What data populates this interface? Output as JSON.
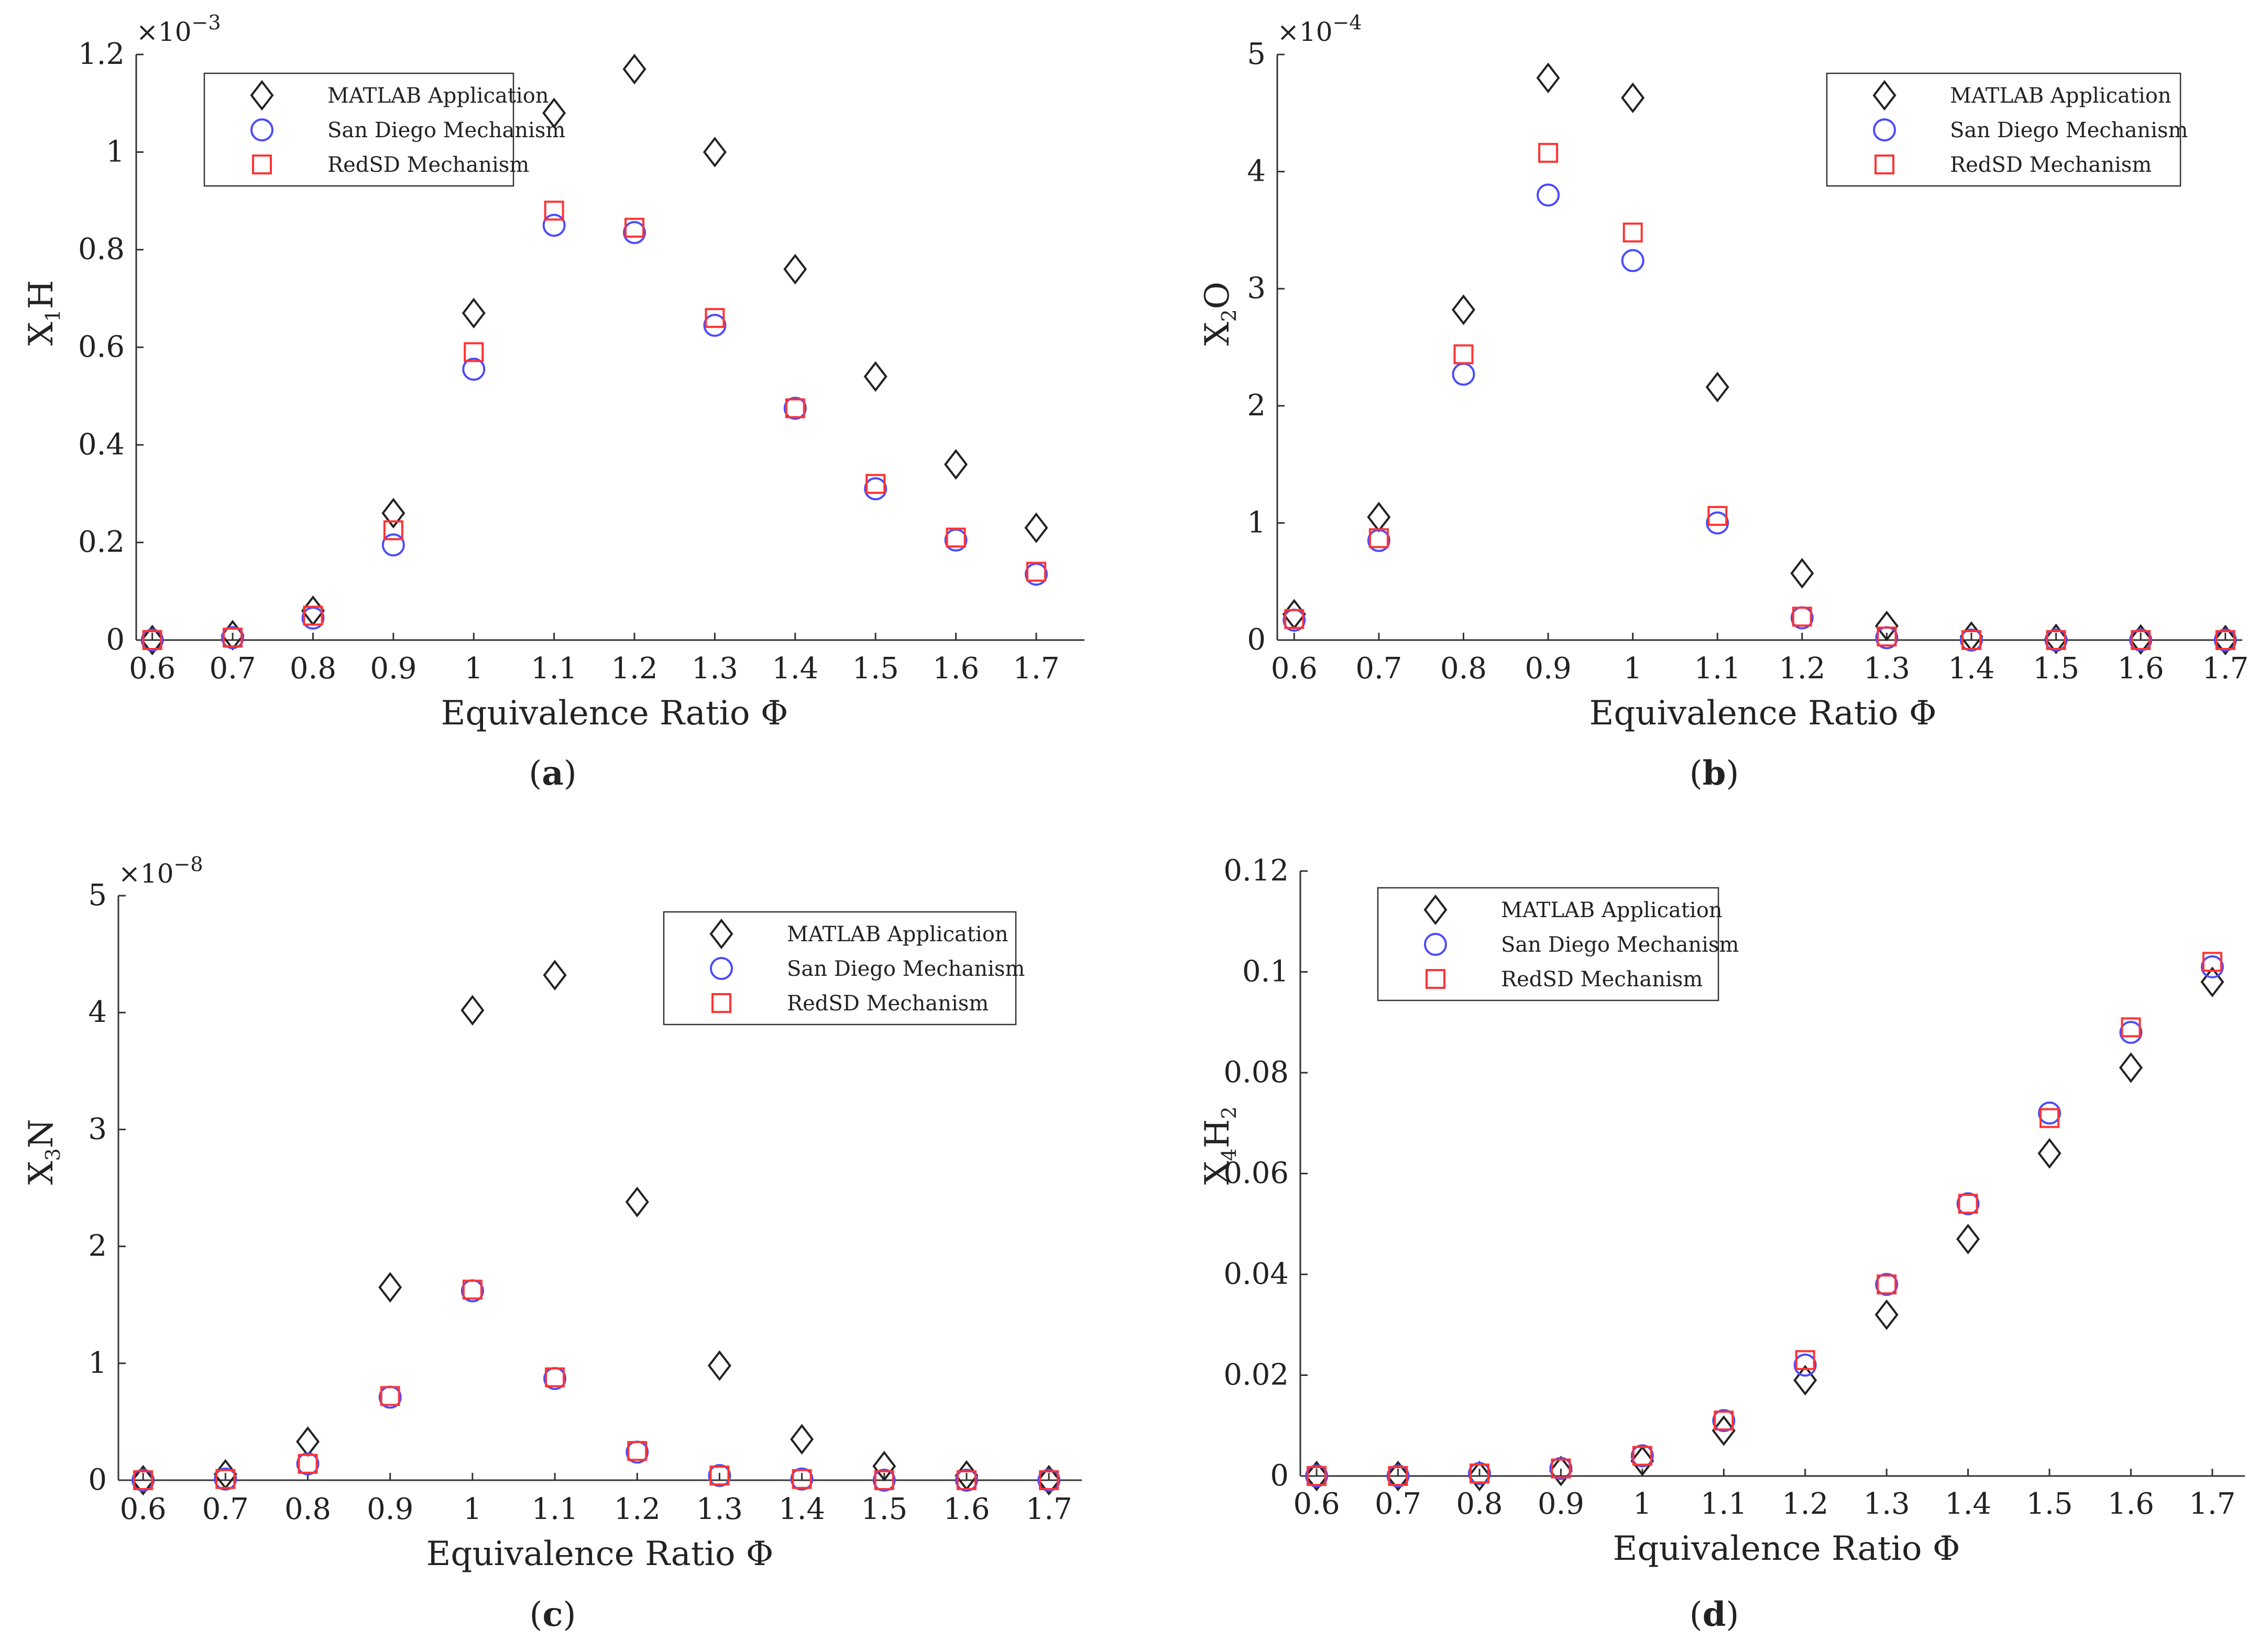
{
  "figure": {
    "series_names": [
      "MATLAB Application",
      "San Diego Mechanism",
      "RedSD Mechanism"
    ],
    "series_colors": {
      "matlab": "#222222",
      "sandiego": "#4a4aff",
      "redsd": "#ff3333"
    }
  },
  "chart_data": [
    {
      "type": "scatter",
      "panel": "a",
      "caption": "a",
      "xlabel": "Equivalence Ratio Φ",
      "ylabel_main": "X",
      "ylabel_sub": "1",
      "ylabel_tail": "H",
      "yexp_base": "×10",
      "yexp_power": "−3",
      "x": [
        0.6,
        0.7,
        0.8,
        0.9,
        1.0,
        1.1,
        1.2,
        1.3,
        1.4,
        1.5,
        1.6,
        1.7
      ],
      "xticks": [
        "0.6",
        "0.7",
        "0.8",
        "0.9",
        "1",
        "1.1",
        "1.2",
        "1.3",
        "1.4",
        "1.5",
        "1.6",
        "1.7"
      ],
      "yticks": [
        "0",
        "0.2",
        "0.4",
        "0.6",
        "0.8",
        "1",
        "1.2"
      ],
      "ytick_values": [
        0,
        0.2,
        0.4,
        0.6,
        0.8,
        1.0,
        1.2
      ],
      "xlim": [
        0.58,
        1.76
      ],
      "ylim": [
        0,
        1.2
      ],
      "legend_position": "top-left",
      "series": [
        {
          "name": "MATLAB Application",
          "marker": "diamond",
          "values": [
            0.0,
            0.01,
            0.06,
            0.26,
            0.67,
            1.08,
            1.17,
            1.0,
            0.76,
            0.54,
            0.36,
            0.23
          ]
        },
        {
          "name": "San Diego Mechanism",
          "marker": "circle",
          "values": [
            0.0,
            0.005,
            0.045,
            0.195,
            0.555,
            0.85,
            0.835,
            0.645,
            0.475,
            0.31,
            0.205,
            0.135
          ]
        },
        {
          "name": "RedSD Mechanism",
          "marker": "square",
          "values": [
            0.0,
            0.005,
            0.05,
            0.225,
            0.59,
            0.88,
            0.845,
            0.66,
            0.475,
            0.32,
            0.21,
            0.14
          ]
        }
      ]
    },
    {
      "type": "scatter",
      "panel": "b",
      "caption": "b",
      "xlabel": "Equivalence Ratio Φ",
      "ylabel_main": "X",
      "ylabel_sub": "2",
      "ylabel_tail": "O",
      "yexp_base": "×10",
      "yexp_power": "−4",
      "x": [
        0.6,
        0.7,
        0.8,
        0.9,
        1.0,
        1.1,
        1.2,
        1.3,
        1.4,
        1.5,
        1.6,
        1.7
      ],
      "xticks": [
        "0.6",
        "0.7",
        "0.8",
        "0.9",
        "1",
        "1.1",
        "1.2",
        "1.3",
        "1.4",
        "1.5",
        "1.6",
        "1.7"
      ],
      "yticks": [
        "0",
        "1",
        "2",
        "3",
        "4",
        "5"
      ],
      "ytick_values": [
        0,
        1,
        2,
        3,
        4,
        5
      ],
      "xlim": [
        0.58,
        1.72
      ],
      "ylim": [
        0,
        5
      ],
      "legend_position": "top-right",
      "series": [
        {
          "name": "MATLAB Application",
          "marker": "diamond",
          "values": [
            0.22,
            1.05,
            2.82,
            4.8,
            4.63,
            2.16,
            0.57,
            0.12,
            0.03,
            0.01,
            0.005,
            0.0
          ]
        },
        {
          "name": "San Diego Mechanism",
          "marker": "circle",
          "values": [
            0.17,
            0.85,
            2.27,
            3.8,
            3.24,
            1.0,
            0.19,
            0.02,
            0.0,
            0.0,
            0.0,
            0.0
          ]
        },
        {
          "name": "RedSD Mechanism",
          "marker": "square",
          "values": [
            0.18,
            0.87,
            2.44,
            4.16,
            3.48,
            1.06,
            0.2,
            0.03,
            0.0,
            0.0,
            0.0,
            0.0
          ]
        }
      ]
    },
    {
      "type": "scatter",
      "panel": "c",
      "caption": "c",
      "xlabel": "Equivalence Ratio Φ",
      "ylabel_main": "X",
      "ylabel_sub": "3",
      "ylabel_tail": "N",
      "yexp_base": "×10",
      "yexp_power": "−8",
      "x": [
        0.6,
        0.7,
        0.8,
        0.9,
        1.0,
        1.1,
        1.2,
        1.3,
        1.4,
        1.5,
        1.6,
        1.7
      ],
      "xticks": [
        "0.6",
        "0.7",
        "0.8",
        "0.9",
        "1",
        "1.1",
        "1.2",
        "1.3",
        "1.4",
        "1.5",
        "1.6",
        "1.7"
      ],
      "yticks": [
        "0",
        "1",
        "2",
        "3",
        "4",
        "5"
      ],
      "ytick_values": [
        0,
        1,
        2,
        3,
        4,
        5
      ],
      "xlim": [
        0.57,
        1.74
      ],
      "ylim": [
        0,
        5
      ],
      "legend_position": "top-right",
      "series": [
        {
          "name": "MATLAB Application",
          "marker": "diamond",
          "values": [
            0.0,
            0.05,
            0.33,
            1.65,
            4.02,
            4.32,
            2.38,
            0.98,
            0.35,
            0.12,
            0.04,
            0.0
          ]
        },
        {
          "name": "San Diego Mechanism",
          "marker": "circle",
          "values": [
            0.0,
            0.01,
            0.14,
            0.71,
            1.62,
            0.87,
            0.24,
            0.04,
            0.01,
            0.0,
            0.0,
            0.0
          ]
        },
        {
          "name": "RedSD Mechanism",
          "marker": "square",
          "values": [
            0.0,
            0.01,
            0.14,
            0.72,
            1.63,
            0.88,
            0.25,
            0.04,
            0.01,
            0.0,
            0.0,
            0.0
          ]
        }
      ]
    },
    {
      "type": "scatter",
      "panel": "d",
      "caption": "d",
      "xlabel": "Equivalence Ratio Φ",
      "ylabel_main": "X",
      "ylabel_sub": "4",
      "ylabel_tail": "H",
      "ylabel_tail_sub": "2",
      "yexp_base": "",
      "yexp_power": "",
      "x": [
        0.6,
        0.7,
        0.8,
        0.9,
        1.0,
        1.1,
        1.2,
        1.3,
        1.4,
        1.5,
        1.6,
        1.7
      ],
      "xticks": [
        "0.6",
        "0.7",
        "0.8",
        "0.9",
        "1",
        "1.1",
        "1.2",
        "1.3",
        "1.4",
        "1.5",
        "1.6",
        "1.7"
      ],
      "yticks": [
        "0",
        "0.02",
        "0.04",
        "0.06",
        "0.08",
        "0.1",
        "0.12"
      ],
      "ytick_values": [
        0,
        0.02,
        0.04,
        0.06,
        0.08,
        0.1,
        0.12
      ],
      "xlim": [
        0.58,
        1.74
      ],
      "ylim": [
        0,
        0.12
      ],
      "legend_position": "top-left",
      "series": [
        {
          "name": "MATLAB Application",
          "marker": "diamond",
          "values": [
            0.0,
            0.0,
            0.0,
            0.001,
            0.003,
            0.009,
            0.019,
            0.032,
            0.047,
            0.064,
            0.081,
            0.098
          ]
        },
        {
          "name": "San Diego Mechanism",
          "marker": "circle",
          "values": [
            0.0,
            0.0,
            0.0005,
            0.0015,
            0.004,
            0.011,
            0.022,
            0.038,
            0.054,
            0.072,
            0.088,
            0.101
          ]
        },
        {
          "name": "RedSD Mechanism",
          "marker": "square",
          "values": [
            0.0,
            0.0,
            0.0005,
            0.0015,
            0.004,
            0.011,
            0.023,
            0.038,
            0.054,
            0.071,
            0.089,
            0.102
          ]
        }
      ]
    }
  ]
}
